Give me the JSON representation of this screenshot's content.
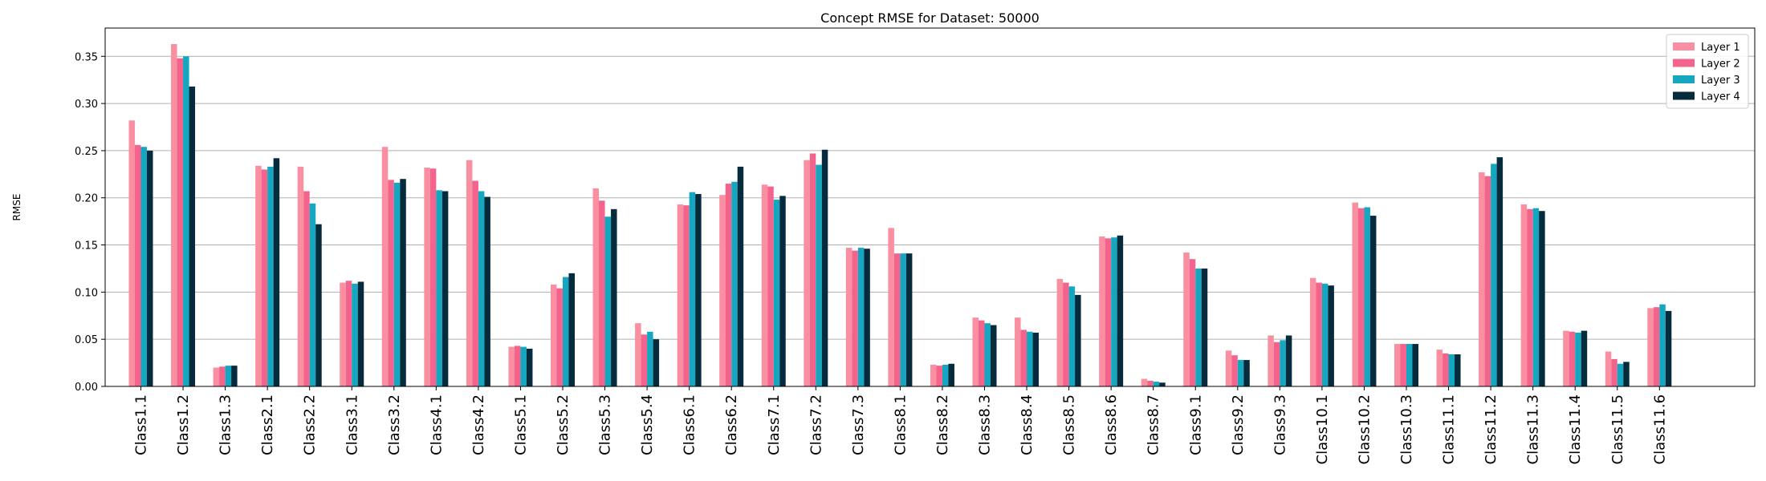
{
  "chart_data": {
    "type": "bar",
    "title": "Concept RMSE for Dataset: 50000",
    "xlabel": "",
    "ylabel": "RMSE",
    "ylim": [
      0,
      0.38
    ],
    "yticks": [
      0.0,
      0.05,
      0.1,
      0.15,
      0.2,
      0.25,
      0.3,
      0.35
    ],
    "ytick_labels": [
      "0.00",
      "0.05",
      "0.10",
      "0.15",
      "0.20",
      "0.25",
      "0.30",
      "0.35"
    ],
    "grid": "horizontal",
    "legend_position": "top-right",
    "categories": [
      "Class1.1",
      "Class1.2",
      "Class1.3",
      "Class2.1",
      "Class2.2",
      "Class3.1",
      "Class3.2",
      "Class4.1",
      "Class4.2",
      "Class5.1",
      "Class5.2",
      "Class5.3",
      "Class5.4",
      "Class6.1",
      "Class6.2",
      "Class7.1",
      "Class7.2",
      "Class7.3",
      "Class8.1",
      "Class8.2",
      "Class8.3",
      "Class8.4",
      "Class8.5",
      "Class8.6",
      "Class8.7",
      "Class9.1",
      "Class9.2",
      "Class9.3",
      "Class10.1",
      "Class10.2",
      "Class10.3",
      "Class11.1",
      "Class11.2",
      "Class11.3",
      "Class11.4",
      "Class11.5",
      "Class11.6"
    ],
    "series": [
      {
        "name": "Layer 1",
        "color": "#f98fa0",
        "values": [
          0.282,
          0.363,
          0.02,
          0.234,
          0.233,
          0.11,
          0.254,
          0.232,
          0.24,
          0.042,
          0.108,
          0.21,
          0.067,
          0.193,
          0.203,
          0.214,
          0.24,
          0.147,
          0.168,
          0.023,
          0.073,
          0.073,
          0.114,
          0.159,
          0.008,
          0.142,
          0.038,
          0.054,
          0.115,
          0.195,
          0.045,
          0.039,
          0.227,
          0.193,
          0.059,
          0.037,
          0.083
        ]
      },
      {
        "name": "Layer 2",
        "color": "#f4638b",
        "values": [
          0.256,
          0.348,
          0.021,
          0.23,
          0.207,
          0.112,
          0.219,
          0.231,
          0.218,
          0.043,
          0.104,
          0.197,
          0.055,
          0.192,
          0.215,
          0.212,
          0.247,
          0.144,
          0.141,
          0.022,
          0.07,
          0.06,
          0.11,
          0.157,
          0.006,
          0.135,
          0.033,
          0.047,
          0.11,
          0.189,
          0.045,
          0.035,
          0.223,
          0.188,
          0.058,
          0.029,
          0.084
        ]
      },
      {
        "name": "Layer 3",
        "color": "#15a7c0",
        "values": [
          0.254,
          0.35,
          0.022,
          0.233,
          0.194,
          0.109,
          0.216,
          0.208,
          0.207,
          0.042,
          0.116,
          0.18,
          0.058,
          0.206,
          0.217,
          0.198,
          0.235,
          0.147,
          0.141,
          0.023,
          0.067,
          0.058,
          0.106,
          0.158,
          0.005,
          0.125,
          0.028,
          0.049,
          0.109,
          0.19,
          0.045,
          0.034,
          0.236,
          0.189,
          0.057,
          0.024,
          0.087
        ]
      },
      {
        "name": "Layer 4",
        "color": "#062b3c",
        "values": [
          0.25,
          0.318,
          0.022,
          0.242,
          0.172,
          0.111,
          0.22,
          0.207,
          0.201,
          0.04,
          0.12,
          0.188,
          0.05,
          0.204,
          0.233,
          0.202,
          0.251,
          0.146,
          0.141,
          0.024,
          0.065,
          0.057,
          0.097,
          0.16,
          0.004,
          0.125,
          0.028,
          0.054,
          0.107,
          0.181,
          0.045,
          0.034,
          0.243,
          0.186,
          0.059,
          0.026,
          0.08
        ]
      }
    ]
  }
}
